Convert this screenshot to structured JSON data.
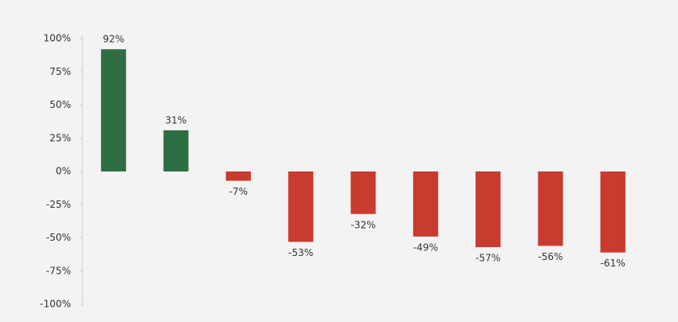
{
  "chart_data": {
    "type": "bar",
    "categories": [
      null,
      null,
      null,
      null,
      null,
      null,
      null,
      null,
      null
    ],
    "values": [
      92,
      31,
      -7,
      -53,
      -32,
      -49,
      -57,
      -56,
      -61
    ],
    "value_labels": [
      "92%",
      "31%",
      "-7%",
      "-53%",
      "-32%",
      "-49%",
      "-57%",
      "-56%",
      "-61%"
    ],
    "colors": [
      "#2f6e43",
      "#2f6e43",
      "#c93b2e",
      "#c93b2e",
      "#c93b2e",
      "#c93b2e",
      "#c93b2e",
      "#c93b2e",
      "#c93b2e"
    ],
    "ylim": [
      -100,
      100
    ],
    "yticks": [
      {
        "value": -100,
        "label": "-100%"
      },
      {
        "value": -75,
        "label": "-75%"
      },
      {
        "value": -50,
        "label": "-50%"
      },
      {
        "value": -25,
        "label": "-25%"
      },
      {
        "value": 0,
        "label": "0%"
      },
      {
        "value": 25,
        "label": "25%"
      },
      {
        "value": 50,
        "label": "50%"
      },
      {
        "value": 75,
        "label": "75%"
      },
      {
        "value": 100,
        "label": "100%"
      }
    ],
    "grid": false
  }
}
